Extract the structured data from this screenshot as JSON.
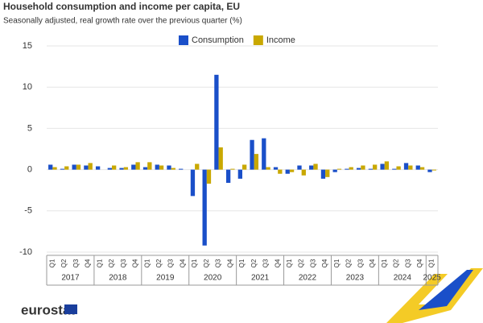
{
  "chart_data": {
    "type": "bar",
    "title": "Household consumption and income per capita, EU",
    "subtitle": "Seasonally adjusted, real growth rate over the previous quarter (%)",
    "categories": [
      "Q1",
      "Q2",
      "Q3",
      "Q4",
      "Q1",
      "Q2",
      "Q3",
      "Q4",
      "Q1",
      "Q2",
      "Q3",
      "Q4",
      "Q1",
      "Q2",
      "Q3",
      "Q4",
      "Q1",
      "Q2",
      "Q3",
      "Q4",
      "Q1",
      "Q2",
      "Q3",
      "Q4",
      "Q1",
      "Q2",
      "Q3",
      "Q4",
      "Q1",
      "Q2",
      "Q3",
      "Q4",
      "Q1"
    ],
    "years": [
      "2017",
      "2018",
      "2019",
      "2020",
      "2021",
      "2022",
      "2023",
      "2024",
      "2025"
    ],
    "series": [
      {
        "name": "Consumption",
        "color": "#1a4fc9",
        "values": [
          0.6,
          0.1,
          0.6,
          0.5,
          0.4,
          0.2,
          0.2,
          0.6,
          0.3,
          0.6,
          0.5,
          0.1,
          -3.2,
          -9.2,
          11.5,
          -1.6,
          -1.1,
          3.6,
          3.8,
          0.3,
          -0.5,
          0.5,
          0.5,
          -1.1,
          -0.3,
          0.1,
          0.2,
          0.1,
          0.7,
          0.1,
          0.8,
          0.5,
          -0.3
        ]
      },
      {
        "name": "Income",
        "color": "#c9a800",
        "values": [
          0.3,
          0.4,
          0.6,
          0.8,
          0.0,
          0.5,
          0.3,
          0.9,
          0.9,
          0.5,
          0.2,
          0.0,
          0.7,
          -1.7,
          2.7,
          0.1,
          0.6,
          1.9,
          0.3,
          -0.5,
          -0.3,
          -0.7,
          0.7,
          -0.9,
          0.1,
          0.3,
          0.5,
          0.6,
          1.0,
          0.4,
          0.5,
          0.3,
          -0.1
        ]
      }
    ],
    "ylim": [
      -10,
      15
    ],
    "yticks": [
      -10,
      -5,
      0,
      5,
      10,
      15
    ],
    "grid": true,
    "legend": "top",
    "logo": "eurostat"
  }
}
